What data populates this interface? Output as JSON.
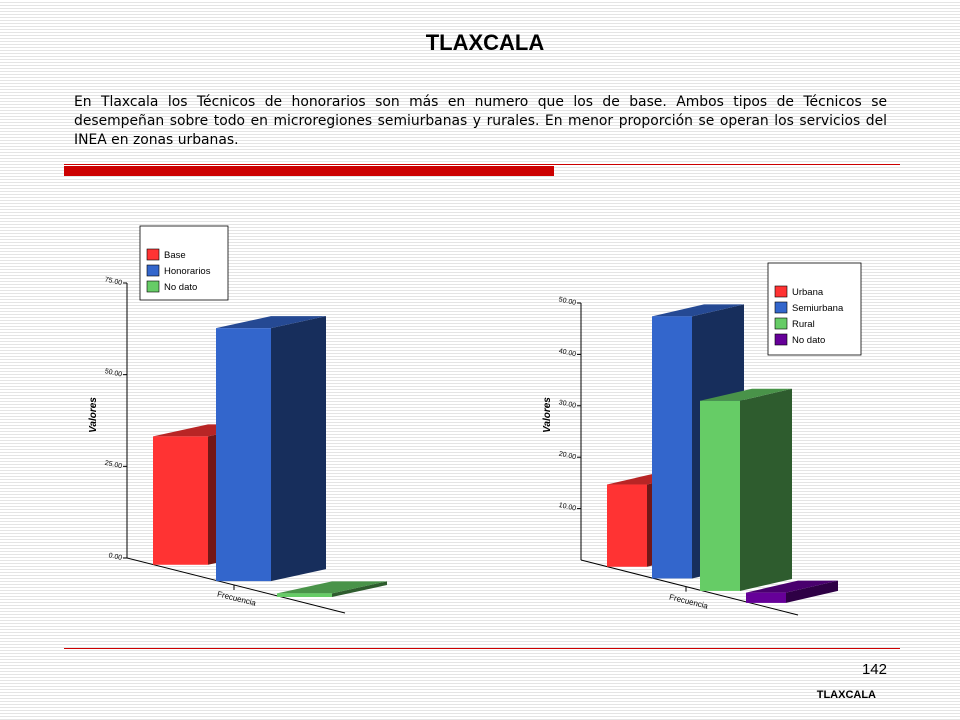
{
  "slide": {
    "title": "TLAXCALA",
    "paragraph": "En Tlaxcala los Técnicos de honorarios son más en numero que los de base. Ambos tipos de Técnicos se desempeñan sobre todo en microregiones semiurbanas y rurales. En menor proporción se operan los servicios del INEA en zonas urbanas.",
    "page_number": "142",
    "footer": "TLAXCALA"
  },
  "colors": {
    "accent": "#cc0000"
  },
  "chart_data": [
    {
      "type": "bar",
      "variant": "3d",
      "categories": [
        "Frecuencia"
      ],
      "ylabel": "Valores",
      "ylim": [
        0,
        75
      ],
      "yticks": [
        "0.00",
        "25.00",
        "50.00",
        "75.00"
      ],
      "tick_values": [
        0,
        25,
        50,
        75
      ],
      "legend_position": "top",
      "series": [
        {
          "name": "Base",
          "values": [
            35
          ],
          "color": "#ff3333"
        },
        {
          "name": "Honorarios",
          "values": [
            69
          ],
          "color": "#3366cc"
        },
        {
          "name": "No dato",
          "values": [
            1
          ],
          "color": "#66cc66"
        }
      ]
    },
    {
      "type": "bar",
      "variant": "3d",
      "categories": [
        "Frecuencia"
      ],
      "ylabel": "Valores",
      "ylim": [
        0,
        50
      ],
      "yticks": [
        "10.00",
        "20.00",
        "30.00",
        "40.00",
        "50.00"
      ],
      "tick_values": [
        10,
        20,
        30,
        40,
        50
      ],
      "legend_position": "top-right",
      "series": [
        {
          "name": "Urbana",
          "values": [
            16
          ],
          "color": "#ff3333"
        },
        {
          "name": "Semiurbana",
          "values": [
            51
          ],
          "color": "#3366cc"
        },
        {
          "name": "Rural",
          "values": [
            37
          ],
          "color": "#66cc66"
        },
        {
          "name": "No dato",
          "values": [
            2
          ],
          "color": "#660099"
        }
      ]
    }
  ]
}
